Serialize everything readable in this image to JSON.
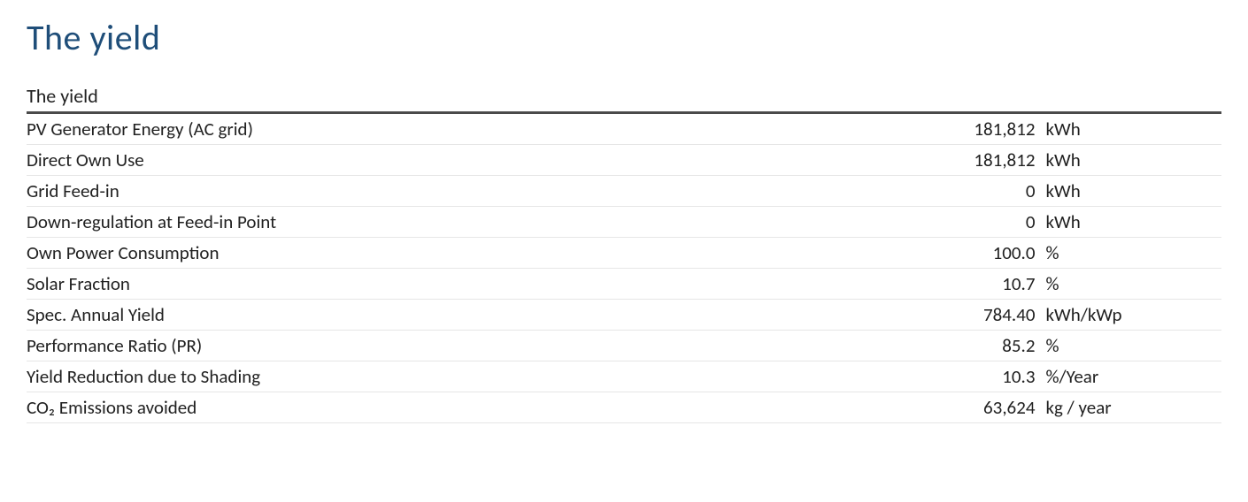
{
  "title": "The yield",
  "section_title": "The yield",
  "rows": [
    {
      "label": "PV Generator Energy (AC grid)",
      "value": "181,812",
      "unit": "kWh",
      "indent": false
    },
    {
      "label": "Direct Own Use",
      "value": "181,812",
      "unit": "kWh",
      "indent": true
    },
    {
      "label": "Grid Feed-in",
      "value": "0",
      "unit": "kWh",
      "indent": true
    },
    {
      "label": "Down-regulation at Feed-in Point",
      "value": "0",
      "unit": "kWh",
      "indent": true
    },
    {
      "label": "Own Power Consumption",
      "value": "100.0",
      "unit": "%",
      "indent": false
    },
    {
      "label": "Solar Fraction",
      "value": "10.7",
      "unit": "%",
      "indent": false
    },
    {
      "label": "Spec. Annual Yield",
      "value": "784.40",
      "unit": "kWh/kWp",
      "indent": false
    },
    {
      "label": "Performance Ratio (PR)",
      "value": "85.2",
      "unit": "%",
      "indent": false
    },
    {
      "label": "Yield Reduction due to Shading",
      "value": "10.3",
      "unit": "%/Year",
      "indent": false
    },
    {
      "label": "CO₂ Emissions avoided",
      "value": "63,624",
      "unit": "kg / year",
      "indent": false
    }
  ],
  "styling": {
    "title_color": "#1f4e79",
    "title_fontsize": 40,
    "section_title_fontsize": 22,
    "row_fontsize": 21,
    "text_color": "#212121",
    "value_color": "#4a4a4a",
    "row_border_color": "#e6e6e6",
    "section_border_color": "#4a4a4a",
    "section_border_width": 3,
    "background_color": "#ffffff",
    "font_family": "Calibri"
  }
}
